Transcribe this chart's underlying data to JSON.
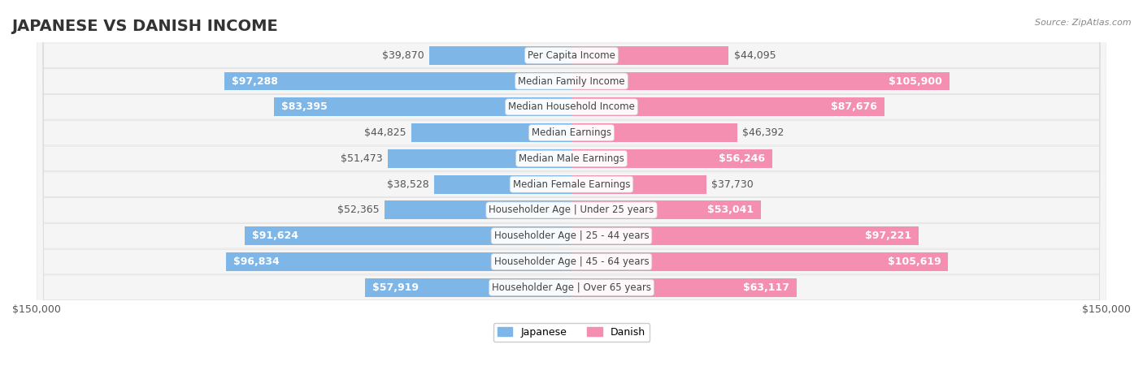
{
  "title": "JAPANESE VS DANISH INCOME",
  "source": "Source: ZipAtlas.com",
  "max_value": 150000,
  "categories": [
    "Per Capita Income",
    "Median Family Income",
    "Median Household Income",
    "Median Earnings",
    "Median Male Earnings",
    "Median Female Earnings",
    "Householder Age | Under 25 years",
    "Householder Age | 25 - 44 years",
    "Householder Age | 45 - 64 years",
    "Householder Age | Over 65 years"
  ],
  "japanese_values": [
    39870,
    97288,
    83395,
    44825,
    51473,
    38528,
    52365,
    91624,
    96834,
    57919
  ],
  "danish_values": [
    44095,
    105900,
    87676,
    46392,
    56246,
    37730,
    53041,
    97221,
    105619,
    63117
  ],
  "japanese_color": "#7EB6E8",
  "danish_color": "#F48FB1",
  "japanese_label": "Japanese",
  "danish_label": "Danish",
  "bar_bg_color": "#F0F0F0",
  "row_bg_color": "#F5F5F5",
  "row_border_color": "#DDDDDD",
  "label_bg_color": "#FFFFFF",
  "title_fontsize": 14,
  "value_fontsize": 9,
  "category_fontsize": 8.5,
  "axis_label_fontsize": 9
}
